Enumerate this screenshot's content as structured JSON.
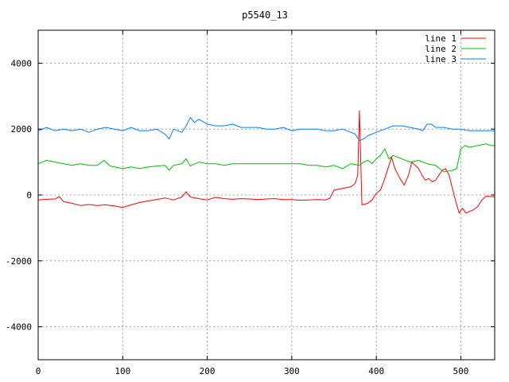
{
  "chart_data": {
    "type": "line",
    "title": "p5540_13",
    "xlabel": "",
    "ylabel": "",
    "xlim": [
      0,
      540
    ],
    "ylim": [
      -5000,
      5000
    ],
    "xticks": [
      0,
      100,
      200,
      300,
      400,
      500
    ],
    "yticks": [
      -4000,
      -2000,
      0,
      2000,
      4000
    ],
    "grid": true,
    "legend_position": "top-right",
    "series": [
      {
        "name": "line 1",
        "color": "#ff0000",
        "points": [
          [
            0,
            -150
          ],
          [
            10,
            -130
          ],
          [
            20,
            -120
          ],
          [
            25,
            -50
          ],
          [
            30,
            -200
          ],
          [
            40,
            -250
          ],
          [
            50,
            -320
          ],
          [
            60,
            -290
          ],
          [
            70,
            -320
          ],
          [
            80,
            -300
          ],
          [
            90,
            -330
          ],
          [
            100,
            -380
          ],
          [
            110,
            -300
          ],
          [
            120,
            -230
          ],
          [
            130,
            -180
          ],
          [
            140,
            -140
          ],
          [
            150,
            -90
          ],
          [
            160,
            -150
          ],
          [
            170,
            -60
          ],
          [
            175,
            100
          ],
          [
            180,
            -60
          ],
          [
            190,
            -110
          ],
          [
            200,
            -150
          ],
          [
            210,
            -70
          ],
          [
            220,
            -110
          ],
          [
            230,
            -130
          ],
          [
            240,
            -110
          ],
          [
            250,
            -120
          ],
          [
            260,
            -140
          ],
          [
            270,
            -120
          ],
          [
            280,
            -110
          ],
          [
            290,
            -140
          ],
          [
            300,
            -140
          ],
          [
            310,
            -160
          ],
          [
            320,
            -150
          ],
          [
            330,
            -140
          ],
          [
            340,
            -150
          ],
          [
            345,
            -100
          ],
          [
            350,
            150
          ],
          [
            360,
            200
          ],
          [
            370,
            250
          ],
          [
            375,
            350
          ],
          [
            378,
            600
          ],
          [
            380,
            2550
          ],
          [
            383,
            -300
          ],
          [
            390,
            -250
          ],
          [
            395,
            -150
          ],
          [
            400,
            50
          ],
          [
            405,
            150
          ],
          [
            410,
            500
          ],
          [
            415,
            900
          ],
          [
            418,
            1150
          ],
          [
            422,
            800
          ],
          [
            428,
            500
          ],
          [
            433,
            300
          ],
          [
            438,
            600
          ],
          [
            442,
            1000
          ],
          [
            446,
            900
          ],
          [
            450,
            800
          ],
          [
            454,
            600
          ],
          [
            458,
            450
          ],
          [
            462,
            500
          ],
          [
            466,
            400
          ],
          [
            470,
            450
          ],
          [
            474,
            600
          ],
          [
            478,
            750
          ],
          [
            482,
            800
          ],
          [
            486,
            600
          ],
          [
            490,
            200
          ],
          [
            494,
            -200
          ],
          [
            498,
            -550
          ],
          [
            502,
            -400
          ],
          [
            506,
            -550
          ],
          [
            510,
            -500
          ],
          [
            515,
            -450
          ],
          [
            520,
            -350
          ],
          [
            525,
            -150
          ],
          [
            530,
            -30
          ],
          [
            535,
            -50
          ],
          [
            540,
            -50
          ]
        ]
      },
      {
        "name": "line 2",
        "color": "#00c000",
        "points": [
          [
            0,
            950
          ],
          [
            10,
            1050
          ],
          [
            20,
            1000
          ],
          [
            30,
            950
          ],
          [
            40,
            900
          ],
          [
            50,
            950
          ],
          [
            60,
            900
          ],
          [
            70,
            900
          ],
          [
            78,
            1050
          ],
          [
            85,
            880
          ],
          [
            100,
            800
          ],
          [
            110,
            850
          ],
          [
            120,
            800
          ],
          [
            130,
            850
          ],
          [
            140,
            880
          ],
          [
            150,
            900
          ],
          [
            155,
            750
          ],
          [
            160,
            900
          ],
          [
            170,
            950
          ],
          [
            175,
            1100
          ],
          [
            180,
            880
          ],
          [
            190,
            1000
          ],
          [
            200,
            950
          ],
          [
            210,
            950
          ],
          [
            220,
            900
          ],
          [
            230,
            950
          ],
          [
            240,
            950
          ],
          [
            250,
            950
          ],
          [
            260,
            950
          ],
          [
            270,
            950
          ],
          [
            280,
            950
          ],
          [
            290,
            950
          ],
          [
            300,
            950
          ],
          [
            310,
            950
          ],
          [
            320,
            900
          ],
          [
            330,
            900
          ],
          [
            340,
            850
          ],
          [
            350,
            900
          ],
          [
            360,
            800
          ],
          [
            370,
            950
          ],
          [
            380,
            900
          ],
          [
            385,
            1000
          ],
          [
            390,
            1050
          ],
          [
            395,
            950
          ],
          [
            400,
            1100
          ],
          [
            405,
            1200
          ],
          [
            410,
            1400
          ],
          [
            415,
            1100
          ],
          [
            420,
            1200
          ],
          [
            430,
            1100
          ],
          [
            440,
            1000
          ],
          [
            450,
            1050
          ],
          [
            460,
            950
          ],
          [
            470,
            900
          ],
          [
            475,
            800
          ],
          [
            480,
            700
          ],
          [
            490,
            750
          ],
          [
            495,
            800
          ],
          [
            500,
            1400
          ],
          [
            505,
            1500
          ],
          [
            510,
            1450
          ],
          [
            520,
            1500
          ],
          [
            530,
            1550
          ],
          [
            535,
            1500
          ],
          [
            540,
            1500
          ]
        ]
      },
      {
        "name": "line 3",
        "color": "#0080ff",
        "points": [
          [
            0,
            1950
          ],
          [
            10,
            2050
          ],
          [
            20,
            1950
          ],
          [
            30,
            2000
          ],
          [
            40,
            1950
          ],
          [
            50,
            2000
          ],
          [
            60,
            1900
          ],
          [
            70,
            2000
          ],
          [
            80,
            2050
          ],
          [
            90,
            2000
          ],
          [
            100,
            1950
          ],
          [
            110,
            2050
          ],
          [
            120,
            1950
          ],
          [
            130,
            1950
          ],
          [
            140,
            2000
          ],
          [
            150,
            1850
          ],
          [
            155,
            1700
          ],
          [
            160,
            2000
          ],
          [
            170,
            1900
          ],
          [
            175,
            2100
          ],
          [
            180,
            2350
          ],
          [
            185,
            2200
          ],
          [
            190,
            2300
          ],
          [
            200,
            2150
          ],
          [
            210,
            2100
          ],
          [
            220,
            2100
          ],
          [
            230,
            2150
          ],
          [
            240,
            2050
          ],
          [
            250,
            2050
          ],
          [
            260,
            2050
          ],
          [
            270,
            2000
          ],
          [
            280,
            2000
          ],
          [
            290,
            2050
          ],
          [
            300,
            1950
          ],
          [
            310,
            2000
          ],
          [
            320,
            2000
          ],
          [
            330,
            2000
          ],
          [
            340,
            1950
          ],
          [
            350,
            1950
          ],
          [
            360,
            2000
          ],
          [
            370,
            1900
          ],
          [
            375,
            1850
          ],
          [
            380,
            1650
          ],
          [
            385,
            1700
          ],
          [
            390,
            1800
          ],
          [
            400,
            1900
          ],
          [
            410,
            2000
          ],
          [
            420,
            2100
          ],
          [
            430,
            2100
          ],
          [
            440,
            2050
          ],
          [
            450,
            2000
          ],
          [
            455,
            1950
          ],
          [
            460,
            2150
          ],
          [
            465,
            2150
          ],
          [
            470,
            2050
          ],
          [
            480,
            2050
          ],
          [
            490,
            2000
          ],
          [
            500,
            2000
          ],
          [
            510,
            1950
          ],
          [
            520,
            1950
          ],
          [
            530,
            1950
          ],
          [
            540,
            1950
          ]
        ]
      }
    ]
  }
}
